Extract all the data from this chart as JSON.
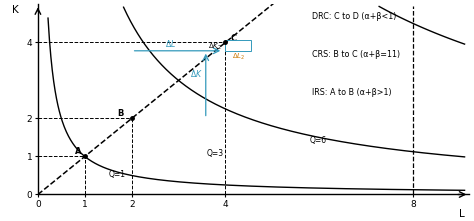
{
  "xlim": [
    0,
    9.2
  ],
  "ylim": [
    0,
    5.0
  ],
  "xticks": [
    0,
    1,
    2,
    4,
    8
  ],
  "yticks": [
    0,
    1,
    2,
    4
  ],
  "xlabel": "L",
  "ylabel": "K",
  "bg_color": "#ffffff",
  "point_A": [
    1,
    1
  ],
  "point_B": [
    2,
    2
  ],
  "point_C": [
    4,
    4
  ],
  "color_main": "#000000",
  "color_cyan": "#3399bb",
  "color_orange": "#cc7700",
  "legend_text": [
    "DRC: C to D (α+β<1)",
    "CRS: B to C (α+β=11)",
    "IRS: A to B (α+β>1)"
  ]
}
